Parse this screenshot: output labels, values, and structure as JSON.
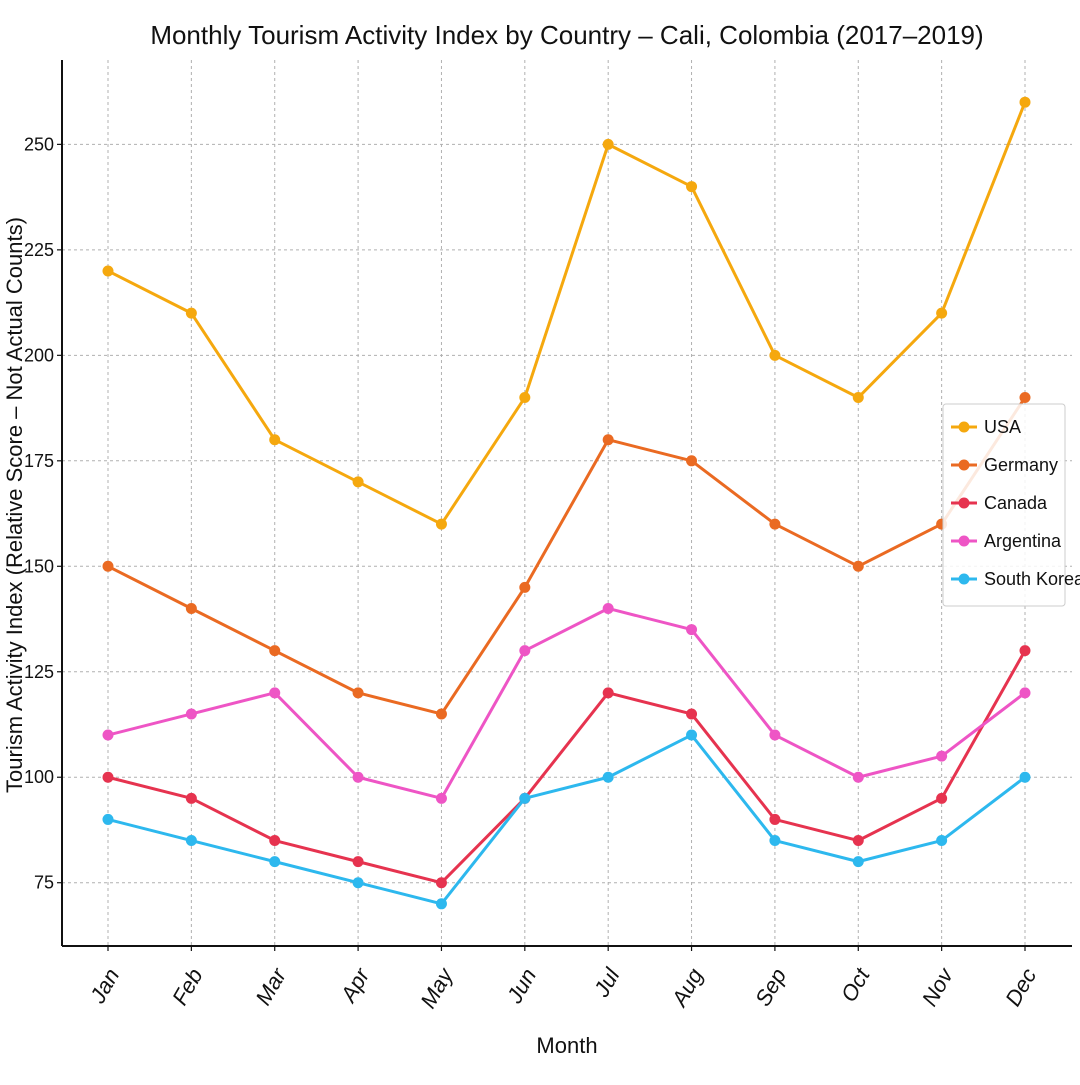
{
  "chart_data": {
    "type": "line",
    "title": "Monthly Tourism Activity Index by Country – Cali, Colombia (2017–2019)",
    "xlabel": "Month",
    "ylabel": "Tourism Activity Index (Relative Score – Not Actual Counts)",
    "categories": [
      "Jan",
      "Feb",
      "Mar",
      "Apr",
      "May",
      "Jun",
      "Jul",
      "Aug",
      "Sep",
      "Oct",
      "Nov",
      "Dec"
    ],
    "ylim": [
      60,
      270
    ],
    "yticks": [
      75,
      100,
      125,
      150,
      175,
      200,
      225,
      250
    ],
    "grid": true,
    "legend_position": "center-right",
    "series": [
      {
        "name": "USA",
        "color": "#f5a80e",
        "values": [
          220,
          210,
          180,
          170,
          160,
          190,
          250,
          240,
          200,
          190,
          210,
          260
        ]
      },
      {
        "name": "Germany",
        "color": "#ea6a22",
        "values": [
          150,
          140,
          130,
          120,
          115,
          145,
          180,
          175,
          160,
          150,
          160,
          190
        ]
      },
      {
        "name": "Canada",
        "color": "#e6334f",
        "values": [
          100,
          95,
          85,
          80,
          75,
          95,
          120,
          115,
          90,
          85,
          95,
          130
        ]
      },
      {
        "name": "Argentina",
        "color": "#ee55c5",
        "values": [
          110,
          115,
          120,
          100,
          95,
          130,
          140,
          135,
          110,
          100,
          105,
          120
        ]
      },
      {
        "name": "South Korea",
        "color": "#2db8ee",
        "values": [
          90,
          85,
          80,
          75,
          70,
          95,
          100,
          110,
          85,
          80,
          85,
          100
        ]
      }
    ]
  }
}
